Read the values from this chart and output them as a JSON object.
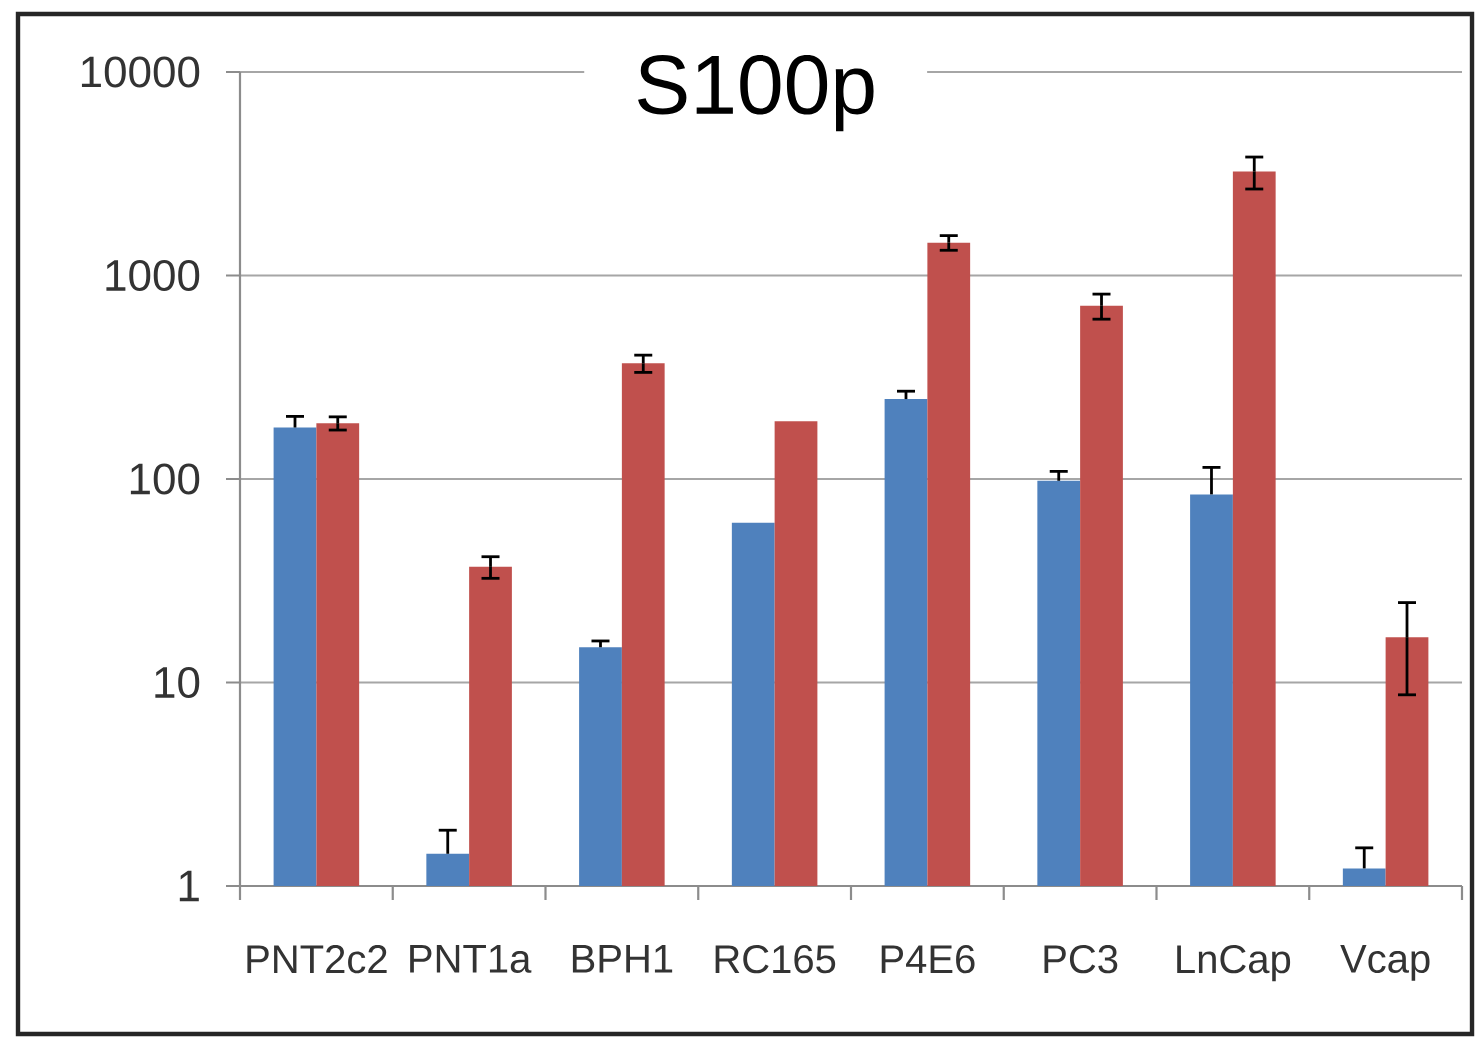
{
  "chart_data": {
    "type": "bar",
    "title": "S100p",
    "categories": [
      "PNT2c2",
      "PNT1a",
      "BPH1",
      "RC165",
      "P4E6",
      "PC3",
      "LnCap",
      "Vcap"
    ],
    "series": [
      {
        "color": "#4f81bd",
        "values": [
          179,
          1.44,
          14.9,
          61,
          247,
          98,
          84,
          1.22
        ],
        "errors": [
          [
            179,
            203
          ],
          [
            1.44,
            1.88
          ],
          [
            14.9,
            16
          ],
          null,
          [
            247,
            270
          ],
          [
            98,
            109
          ],
          [
            84,
            114
          ],
          [
            1.22,
            1.54
          ]
        ]
      },
      {
        "color": "#c0504d",
        "values": [
          188,
          37,
          370,
          192,
          1450,
          710,
          3240,
          16.7
        ],
        "errors": [
          14,
          4.5,
          36,
          null,
          120,
          100,
          580,
          8
        ]
      }
    ],
    "log": true,
    "ylim": [
      1,
      10000
    ],
    "yticks": [
      1,
      10,
      100,
      1000,
      10000
    ],
    "grid": "y"
  }
}
